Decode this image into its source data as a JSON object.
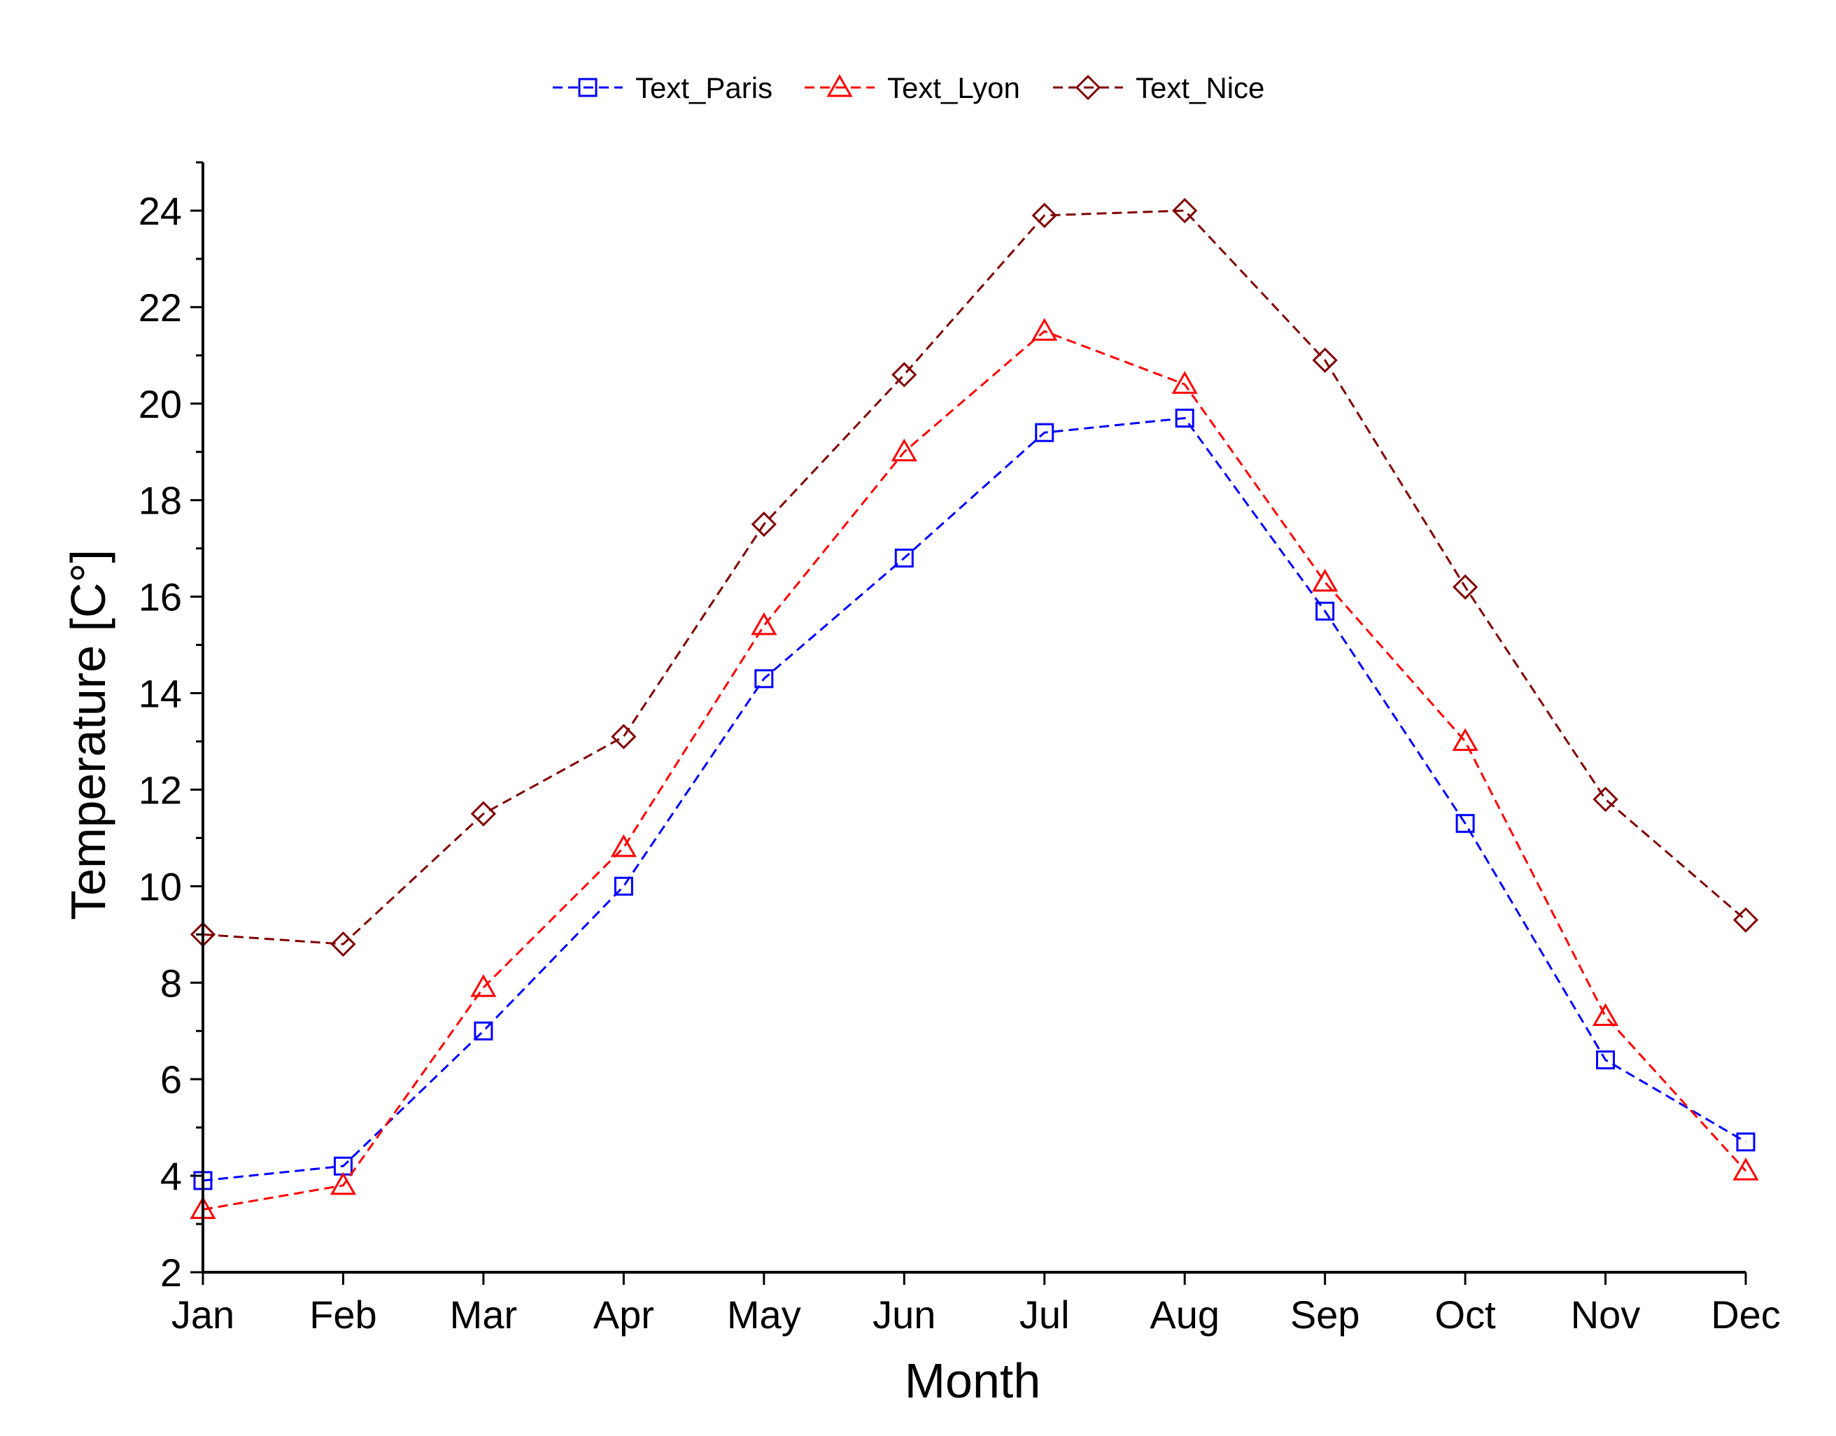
{
  "chart_data": {
    "type": "line",
    "title": "",
    "xlabel": "Month",
    "ylabel": "Temperature [C°]",
    "categories": [
      "Jan",
      "Feb",
      "Mar",
      "Apr",
      "May",
      "Jun",
      "Jul",
      "Aug",
      "Sep",
      "Oct",
      "Nov",
      "Dec"
    ],
    "ylim": [
      2,
      25
    ],
    "yticks": [
      2,
      4,
      6,
      8,
      10,
      12,
      14,
      16,
      18,
      20,
      22,
      24
    ],
    "grid": false,
    "legend_position": "top-center",
    "series": [
      {
        "name": "Text_Paris",
        "color": "#0000ff",
        "marker": "square",
        "values": [
          3.9,
          4.2,
          7.0,
          10.0,
          14.3,
          16.8,
          19.4,
          19.7,
          15.7,
          11.3,
          6.4,
          4.7
        ]
      },
      {
        "name": "Text_Lyon",
        "color": "#ff0000",
        "marker": "triangle",
        "values": [
          3.3,
          3.8,
          7.9,
          10.8,
          15.4,
          19.0,
          21.5,
          20.4,
          16.3,
          13.0,
          7.3,
          4.1
        ]
      },
      {
        "name": "Text_Nice",
        "color": "#800000",
        "marker": "diamond",
        "values": [
          9.0,
          8.8,
          11.5,
          13.1,
          17.5,
          20.6,
          23.9,
          24.0,
          20.9,
          16.2,
          11.8,
          9.3
        ]
      }
    ]
  }
}
